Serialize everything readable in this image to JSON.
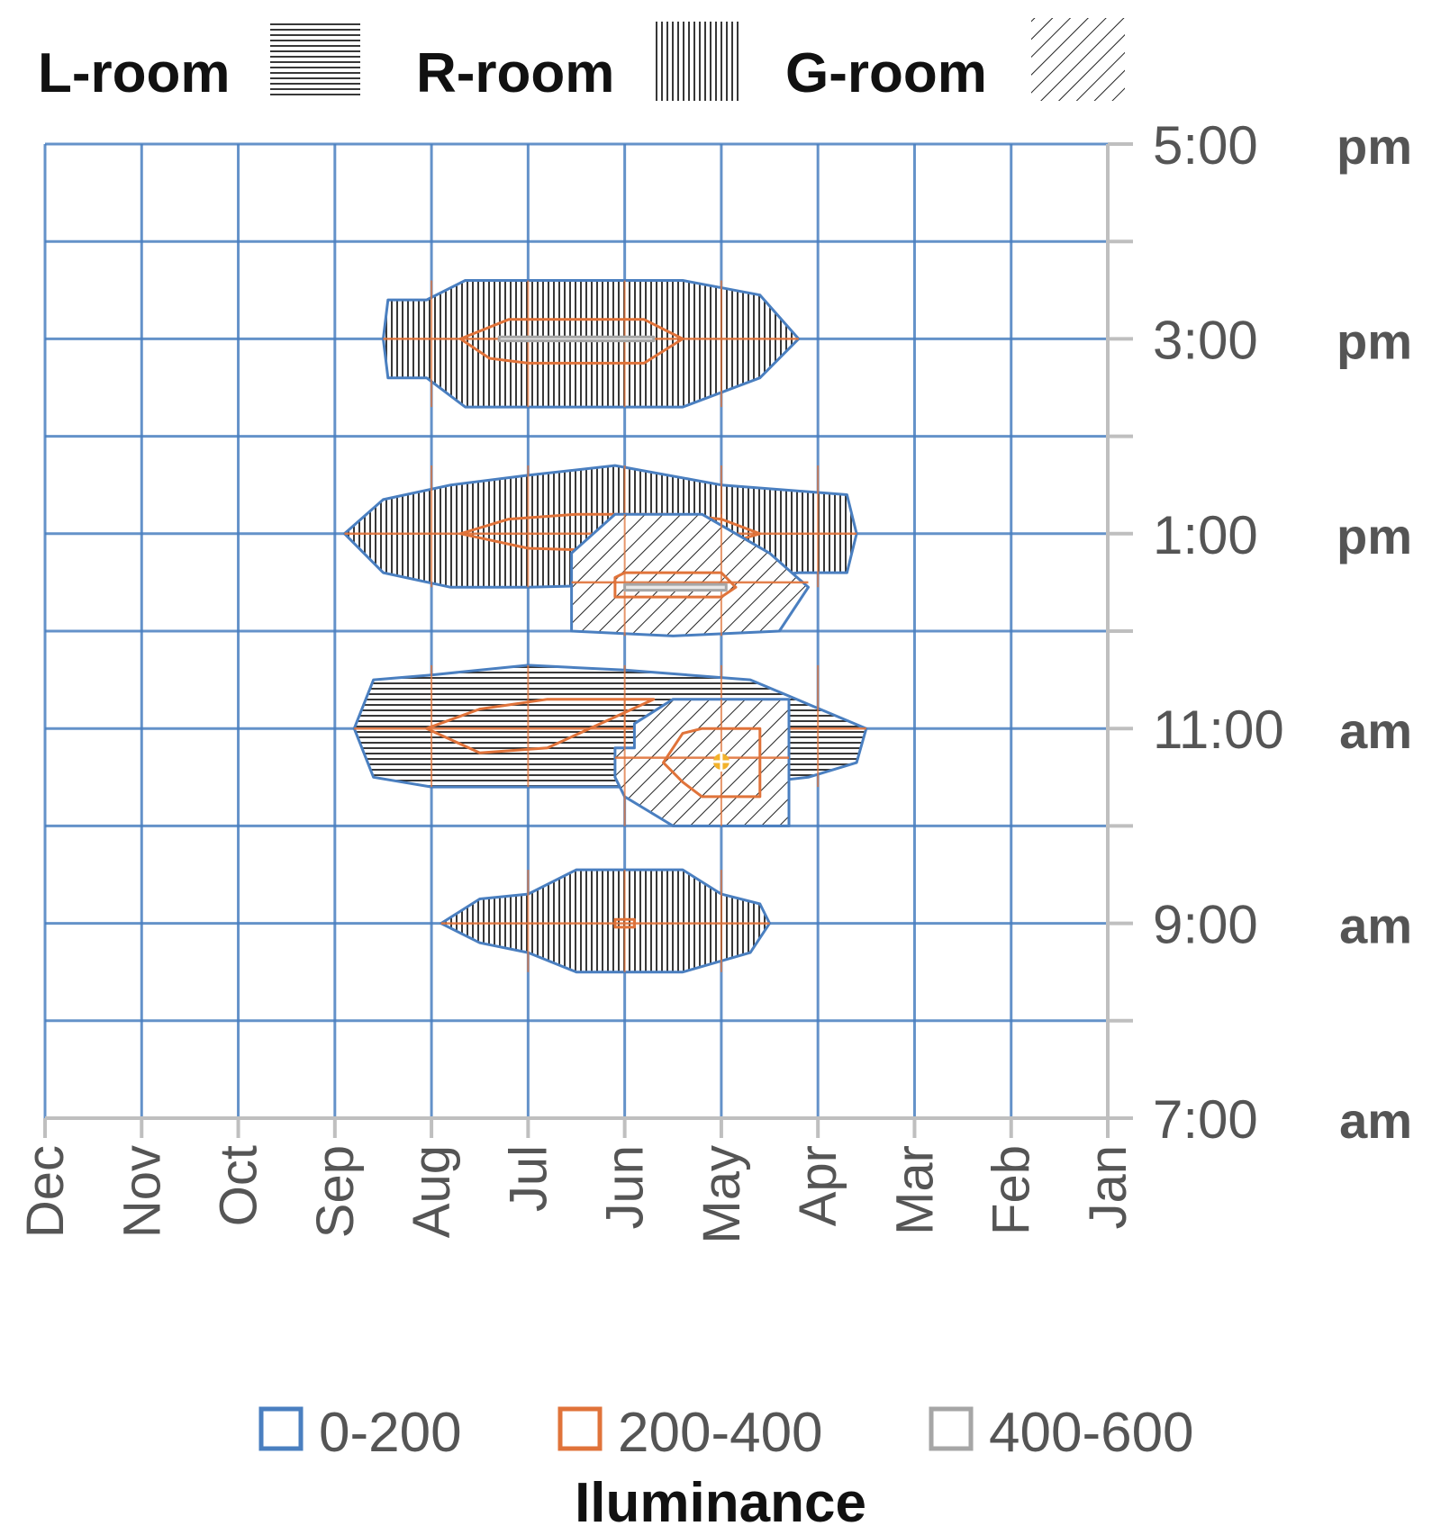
{
  "chart_data": {
    "type": "area",
    "title": "",
    "room_legend": [
      {
        "key": "L",
        "label": "L-room",
        "pattern": "horizontal-lines"
      },
      {
        "key": "R",
        "label": "R-room",
        "pattern": "vertical-lines"
      },
      {
        "key": "G",
        "label": "G-room",
        "pattern": "diagonal-lines"
      }
    ],
    "x_ticks": [
      "Dec",
      "Nov",
      "Oct",
      "Sep",
      "Aug",
      "Jul",
      "Jun",
      "May",
      "Apr",
      "Mar",
      "Feb",
      "Jan"
    ],
    "y_ticks": [
      {
        "hour": 17,
        "time": "5:00",
        "suffix": "pm"
      },
      {
        "hour": 15,
        "time": "3:00",
        "suffix": "pm"
      },
      {
        "hour": 13,
        "time": "1:00",
        "suffix": "pm"
      },
      {
        "hour": 11,
        "time": "11:00",
        "suffix": "am"
      },
      {
        "hour": 9,
        "time": "9:00",
        "suffix": "am"
      },
      {
        "hour": 7,
        "time": "7:00",
        "suffix": "am"
      }
    ],
    "xlim": [
      0,
      11
    ],
    "ylim": [
      7,
      17
    ],
    "grid": true,
    "legend": {
      "title": "Iluminance",
      "placement": "bottom",
      "entries": [
        {
          "label": "0-200",
          "color": "#4a7fc0"
        },
        {
          "label": "200-400",
          "color": "#e0733a"
        },
        {
          "label": "400-600",
          "color": "#a6a6a6"
        }
      ]
    },
    "colors": {
      "grid": "#4a7fc0",
      "band_0_200": "#4a7fc0",
      "band_200_400": "#e0733a",
      "band_400_600": "#a6a6a6",
      "peak_marker": "#f2b22c"
    },
    "series": [
      {
        "room": "R",
        "time": 15,
        "range": "0-200",
        "points": [
          [
            3.55,
            15.4
          ],
          [
            3.95,
            15.4
          ],
          [
            4.35,
            15.6
          ],
          [
            6.6,
            15.6
          ],
          [
            7.4,
            15.45
          ],
          [
            7.8,
            15.0
          ],
          [
            7.4,
            14.6
          ],
          [
            6.6,
            14.3
          ],
          [
            6.0,
            14.3
          ],
          [
            4.35,
            14.3
          ],
          [
            3.95,
            14.6
          ],
          [
            3.55,
            14.6
          ],
          [
            3.5,
            15.0
          ]
        ]
      },
      {
        "room": "R",
        "time": 15,
        "range": "200-400",
        "points": [
          [
            4.3,
            15.0
          ],
          [
            4.8,
            15.2
          ],
          [
            6.2,
            15.2
          ],
          [
            6.6,
            15.0
          ],
          [
            6.2,
            14.75
          ],
          [
            5.0,
            14.75
          ],
          [
            4.6,
            14.8
          ]
        ]
      },
      {
        "room": "R",
        "time": 15,
        "range": "400-600",
        "points": [
          [
            4.7,
            15.02
          ],
          [
            6.3,
            15.02
          ],
          [
            6.3,
            14.98
          ],
          [
            4.7,
            14.98
          ]
        ]
      },
      {
        "room": "R",
        "time": 13,
        "range": "0-200",
        "points": [
          [
            3.1,
            13.0
          ],
          [
            3.5,
            13.35
          ],
          [
            4.2,
            13.5
          ],
          [
            5.0,
            13.6
          ],
          [
            5.9,
            13.7
          ],
          [
            7.0,
            13.5
          ],
          [
            8.3,
            13.4
          ],
          [
            8.4,
            13.0
          ],
          [
            8.3,
            12.6
          ],
          [
            7.8,
            12.6
          ],
          [
            7.0,
            12.5
          ],
          [
            5.0,
            12.45
          ],
          [
            4.2,
            12.45
          ],
          [
            3.5,
            12.6
          ]
        ]
      },
      {
        "room": "R",
        "time": 13,
        "range": "200-400",
        "points": [
          [
            4.3,
            13.0
          ],
          [
            4.8,
            13.15
          ],
          [
            5.5,
            13.2
          ],
          [
            6.5,
            13.2
          ],
          [
            7.0,
            13.15
          ],
          [
            7.4,
            13.0
          ],
          [
            6.7,
            12.8
          ],
          [
            5.0,
            12.85
          ]
        ]
      },
      {
        "room": "G",
        "time": 12.5,
        "range": "0-200",
        "points": [
          [
            5.45,
            12.0
          ],
          [
            5.45,
            12.8
          ],
          [
            5.9,
            13.2
          ],
          [
            6.8,
            13.2
          ],
          [
            7.5,
            12.8
          ],
          [
            7.9,
            12.45
          ],
          [
            7.6,
            12.0
          ],
          [
            6.5,
            11.95
          ]
        ]
      },
      {
        "room": "G",
        "time": 12.5,
        "range": "200-400",
        "points": [
          [
            5.9,
            12.35
          ],
          [
            5.9,
            12.55
          ],
          [
            6.0,
            12.6
          ],
          [
            7.0,
            12.6
          ],
          [
            7.15,
            12.45
          ],
          [
            7.0,
            12.35
          ]
        ]
      },
      {
        "room": "G",
        "time": 12.5,
        "range": "400-600",
        "points": [
          [
            6.0,
            12.48
          ],
          [
            7.05,
            12.48
          ],
          [
            7.05,
            12.42
          ],
          [
            6.0,
            12.42
          ]
        ]
      },
      {
        "room": "L",
        "time": 11,
        "range": "0-200",
        "points": [
          [
            3.2,
            11.0
          ],
          [
            3.4,
            11.5
          ],
          [
            4.0,
            11.55
          ],
          [
            5.0,
            11.65
          ],
          [
            6.0,
            11.6
          ],
          [
            7.3,
            11.5
          ],
          [
            7.9,
            11.25
          ],
          [
            8.5,
            11.0
          ],
          [
            8.4,
            10.65
          ],
          [
            7.9,
            10.5
          ],
          [
            7.0,
            10.4
          ],
          [
            5.0,
            10.4
          ],
          [
            4.0,
            10.4
          ],
          [
            3.4,
            10.5
          ]
        ]
      },
      {
        "room": "L",
        "time": 11,
        "range": "200-400",
        "points": [
          [
            3.95,
            11.0
          ],
          [
            4.5,
            11.2
          ],
          [
            5.2,
            11.3
          ],
          [
            6.3,
            11.3
          ],
          [
            5.2,
            10.8
          ],
          [
            4.5,
            10.75
          ]
        ]
      },
      {
        "room": "G",
        "time": 10.7,
        "range": "0-200",
        "points": [
          [
            5.9,
            10.5
          ],
          [
            5.9,
            10.8
          ],
          [
            6.1,
            10.8
          ],
          [
            6.1,
            11.05
          ],
          [
            6.5,
            11.3
          ],
          [
            7.7,
            11.3
          ],
          [
            7.7,
            10.0
          ],
          [
            6.5,
            10.0
          ],
          [
            6.0,
            10.3
          ]
        ]
      },
      {
        "room": "G",
        "time": 10.7,
        "range": "200-400",
        "points": [
          [
            6.4,
            10.65
          ],
          [
            6.6,
            10.95
          ],
          [
            6.8,
            11.0
          ],
          [
            7.4,
            11.0
          ],
          [
            7.4,
            10.3
          ],
          [
            6.8,
            10.3
          ],
          [
            6.6,
            10.45
          ]
        ]
      },
      {
        "room": "R",
        "time": 9,
        "range": "0-200",
        "points": [
          [
            4.1,
            9.0
          ],
          [
            4.5,
            9.25
          ],
          [
            5.0,
            9.3
          ],
          [
            5.5,
            9.55
          ],
          [
            6.6,
            9.55
          ],
          [
            7.0,
            9.3
          ],
          [
            7.4,
            9.2
          ],
          [
            7.5,
            9.0
          ],
          [
            7.3,
            8.7
          ],
          [
            6.6,
            8.5
          ],
          [
            5.5,
            8.5
          ],
          [
            5.0,
            8.7
          ],
          [
            4.5,
            8.8
          ]
        ]
      },
      {
        "room": "R",
        "time": 9,
        "range": "200-400",
        "points": [
          [
            5.9,
            9.04
          ],
          [
            6.1,
            9.04
          ],
          [
            6.1,
            8.96
          ],
          [
            5.9,
            8.96
          ]
        ]
      },
      {
        "room": "G",
        "time": 10.7,
        "range": "peak",
        "points": [
          [
            7.0,
            10.66
          ]
        ]
      }
    ]
  }
}
